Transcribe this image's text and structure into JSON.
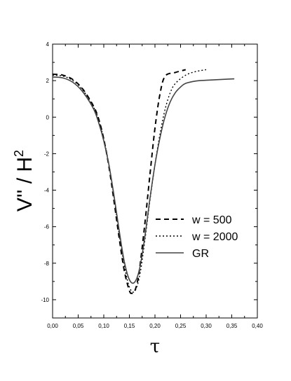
{
  "chart_data": {
    "type": "line",
    "title": "",
    "xlabel": "τ",
    "ylabel_main": "V'' / H",
    "ylabel_sup": "2",
    "xlim": [
      0.0,
      0.4
    ],
    "ylim": [
      -11,
      4
    ],
    "x_ticks": [
      0.0,
      0.05,
      0.1,
      0.15,
      0.2,
      0.25,
      0.3,
      0.35,
      0.4
    ],
    "x_tick_labels": [
      "0,00",
      "0,05",
      "0,10",
      "0,15",
      "0,20",
      "0,25",
      "0,30",
      "0,35",
      "0,40"
    ],
    "y_ticks": [
      -10,
      -8,
      -6,
      -4,
      -2,
      0,
      2,
      4
    ],
    "y_tick_labels": [
      "-10",
      "-8",
      "-6",
      "-4",
      "-2",
      "0",
      "2",
      "4"
    ],
    "grid": false,
    "legend_position": "lower-right",
    "series": [
      {
        "name": "w = 500",
        "style": "dashed",
        "color": "#000000",
        "x": [
          0.0,
          0.02,
          0.04,
          0.06,
          0.08,
          0.09,
          0.1,
          0.11,
          0.12,
          0.13,
          0.14,
          0.15,
          0.155,
          0.16,
          0.165,
          0.17,
          0.18,
          0.19,
          0.2,
          0.21,
          0.22,
          0.24,
          0.26
        ],
        "y": [
          2.35,
          2.3,
          2.05,
          1.5,
          0.6,
          -0.1,
          -1.2,
          -2.7,
          -4.6,
          -6.6,
          -8.4,
          -9.5,
          -9.65,
          -9.55,
          -9.1,
          -8.3,
          -5.9,
          -3.2,
          -0.6,
          1.3,
          2.25,
          2.45,
          2.6
        ]
      },
      {
        "name": "w = 2000",
        "style": "dotted",
        "color": "#000000",
        "x": [
          0.0,
          0.02,
          0.04,
          0.06,
          0.08,
          0.09,
          0.1,
          0.11,
          0.12,
          0.13,
          0.14,
          0.15,
          0.16,
          0.17,
          0.18,
          0.19,
          0.2,
          0.21,
          0.22,
          0.23,
          0.24,
          0.26,
          0.28,
          0.3
        ],
        "y": [
          2.3,
          2.25,
          2.0,
          1.45,
          0.55,
          -0.15,
          -1.2,
          -2.6,
          -4.4,
          -6.4,
          -8.1,
          -9.3,
          -9.55,
          -8.7,
          -6.8,
          -4.6,
          -2.6,
          -0.9,
          0.45,
          1.35,
          1.85,
          2.3,
          2.5,
          2.6
        ]
      },
      {
        "name": "GR",
        "style": "solid",
        "color": "#444444",
        "x": [
          0.0,
          0.02,
          0.04,
          0.06,
          0.08,
          0.09,
          0.1,
          0.11,
          0.12,
          0.13,
          0.14,
          0.15,
          0.16,
          0.17,
          0.18,
          0.19,
          0.2,
          0.21,
          0.22,
          0.23,
          0.24,
          0.25,
          0.26,
          0.28,
          0.3,
          0.32,
          0.34,
          0.355
        ],
        "y": [
          2.2,
          2.15,
          1.9,
          1.35,
          0.45,
          -0.3,
          -1.3,
          -2.6,
          -4.3,
          -6.2,
          -7.9,
          -8.9,
          -9.05,
          -8.3,
          -6.6,
          -4.5,
          -2.6,
          -1.1,
          0.05,
          0.85,
          1.35,
          1.65,
          1.85,
          1.98,
          2.02,
          2.05,
          2.08,
          2.1
        ]
      }
    ]
  }
}
